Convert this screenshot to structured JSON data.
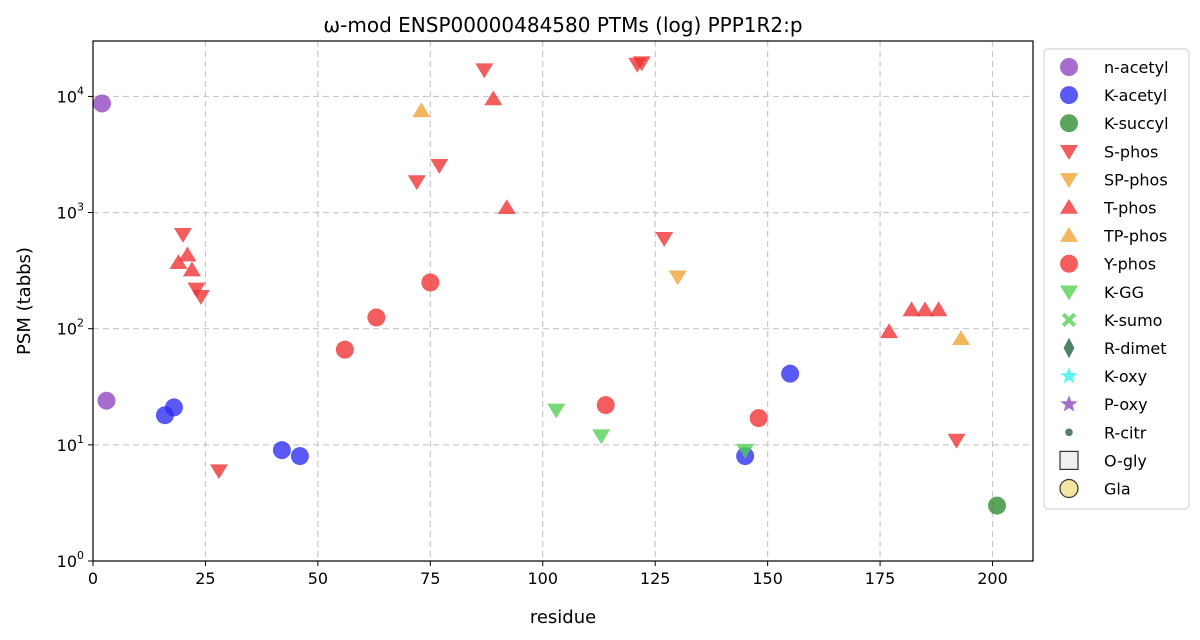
{
  "chart_data": {
    "type": "scatter",
    "title": "ω-mod ENSP00000484580 PTMs (log) PPP1R2:p",
    "xlabel": "residue",
    "ylabel": "PSM (tabbs)",
    "xlim": [
      0,
      209
    ],
    "ylim": [
      1,
      30000
    ],
    "y_scale": "log",
    "x_ticks": [
      0,
      25,
      50,
      75,
      100,
      125,
      150,
      175,
      200
    ],
    "y_ticks": [
      {
        "value": 1,
        "label": "10^0"
      },
      {
        "value": 10,
        "label": "10^1"
      },
      {
        "value": 100,
        "label": "10^2"
      },
      {
        "value": 1000,
        "label": "10^3"
      },
      {
        "value": 10000,
        "label": "10^4"
      }
    ],
    "grid": true,
    "legend_position": "outside-right",
    "series": [
      {
        "name": "n-acetyl",
        "marker": "circle",
        "color": "#8e44c0",
        "points": [
          [
            2,
            8700
          ],
          [
            3,
            24
          ]
        ]
      },
      {
        "name": "K-acetyl",
        "marker": "circle",
        "color": "#2a2af0",
        "points": [
          [
            16,
            18
          ],
          [
            18,
            21
          ],
          [
            42,
            9
          ],
          [
            46,
            8
          ],
          [
            145,
            8
          ],
          [
            155,
            41
          ]
        ]
      },
      {
        "name": "K-succyl",
        "marker": "circle",
        "color": "#2e8b2e",
        "points": [
          [
            201,
            3
          ]
        ]
      },
      {
        "name": "S-phos",
        "marker": "triangle-down",
        "color": "#f03030",
        "points": [
          [
            20,
            650
          ],
          [
            23,
            220
          ],
          [
            24,
            190
          ],
          [
            28,
            6
          ],
          [
            72,
            1850
          ],
          [
            77,
            2550
          ],
          [
            87,
            17000
          ],
          [
            121,
            19000
          ],
          [
            122,
            19500
          ],
          [
            127,
            600
          ],
          [
            192,
            11
          ]
        ]
      },
      {
        "name": "SP-phos",
        "marker": "triangle-down",
        "color": "#f0a030",
        "points": [
          [
            130,
            280
          ]
        ]
      },
      {
        "name": "T-phos",
        "marker": "triangle-up",
        "color": "#f03030",
        "points": [
          [
            19,
            370
          ],
          [
            21,
            430
          ],
          [
            22,
            320
          ],
          [
            89,
            9500
          ],
          [
            92,
            1100
          ],
          [
            177,
            94
          ],
          [
            182,
            145
          ],
          [
            185,
            145
          ],
          [
            188,
            145
          ]
        ]
      },
      {
        "name": "TP-phos",
        "marker": "triangle-up",
        "color": "#f0a030",
        "points": [
          [
            73,
            7500
          ],
          [
            193,
            82
          ]
        ]
      },
      {
        "name": "Y-phos",
        "marker": "circle",
        "color": "#f03030",
        "points": [
          [
            56,
            66
          ],
          [
            63,
            125
          ],
          [
            75,
            250
          ],
          [
            114,
            22
          ],
          [
            148,
            17
          ]
        ]
      },
      {
        "name": "K-GG",
        "marker": "triangle-down",
        "color": "#50d050",
        "points": [
          [
            103,
            20
          ],
          [
            113,
            12
          ],
          [
            145,
            9
          ]
        ]
      },
      {
        "name": "K-sumo",
        "marker": "x",
        "color": "#50d050",
        "points": []
      },
      {
        "name": "R-dimet",
        "marker": "diamond",
        "color": "#1f5e3f",
        "points": []
      },
      {
        "name": "K-oxy",
        "marker": "star",
        "color": "#30f0f0",
        "points": []
      },
      {
        "name": "P-oxy",
        "marker": "star",
        "color": "#8e44c0",
        "points": []
      },
      {
        "name": "R-citr",
        "marker": "dot",
        "color": "#1f5e3f",
        "points": []
      },
      {
        "name": "O-gly",
        "marker": "square-open",
        "color": "#f0f0f0",
        "points": []
      },
      {
        "name": "Gla",
        "marker": "circle-open",
        "color": "#f5e5a0",
        "points": []
      }
    ]
  }
}
